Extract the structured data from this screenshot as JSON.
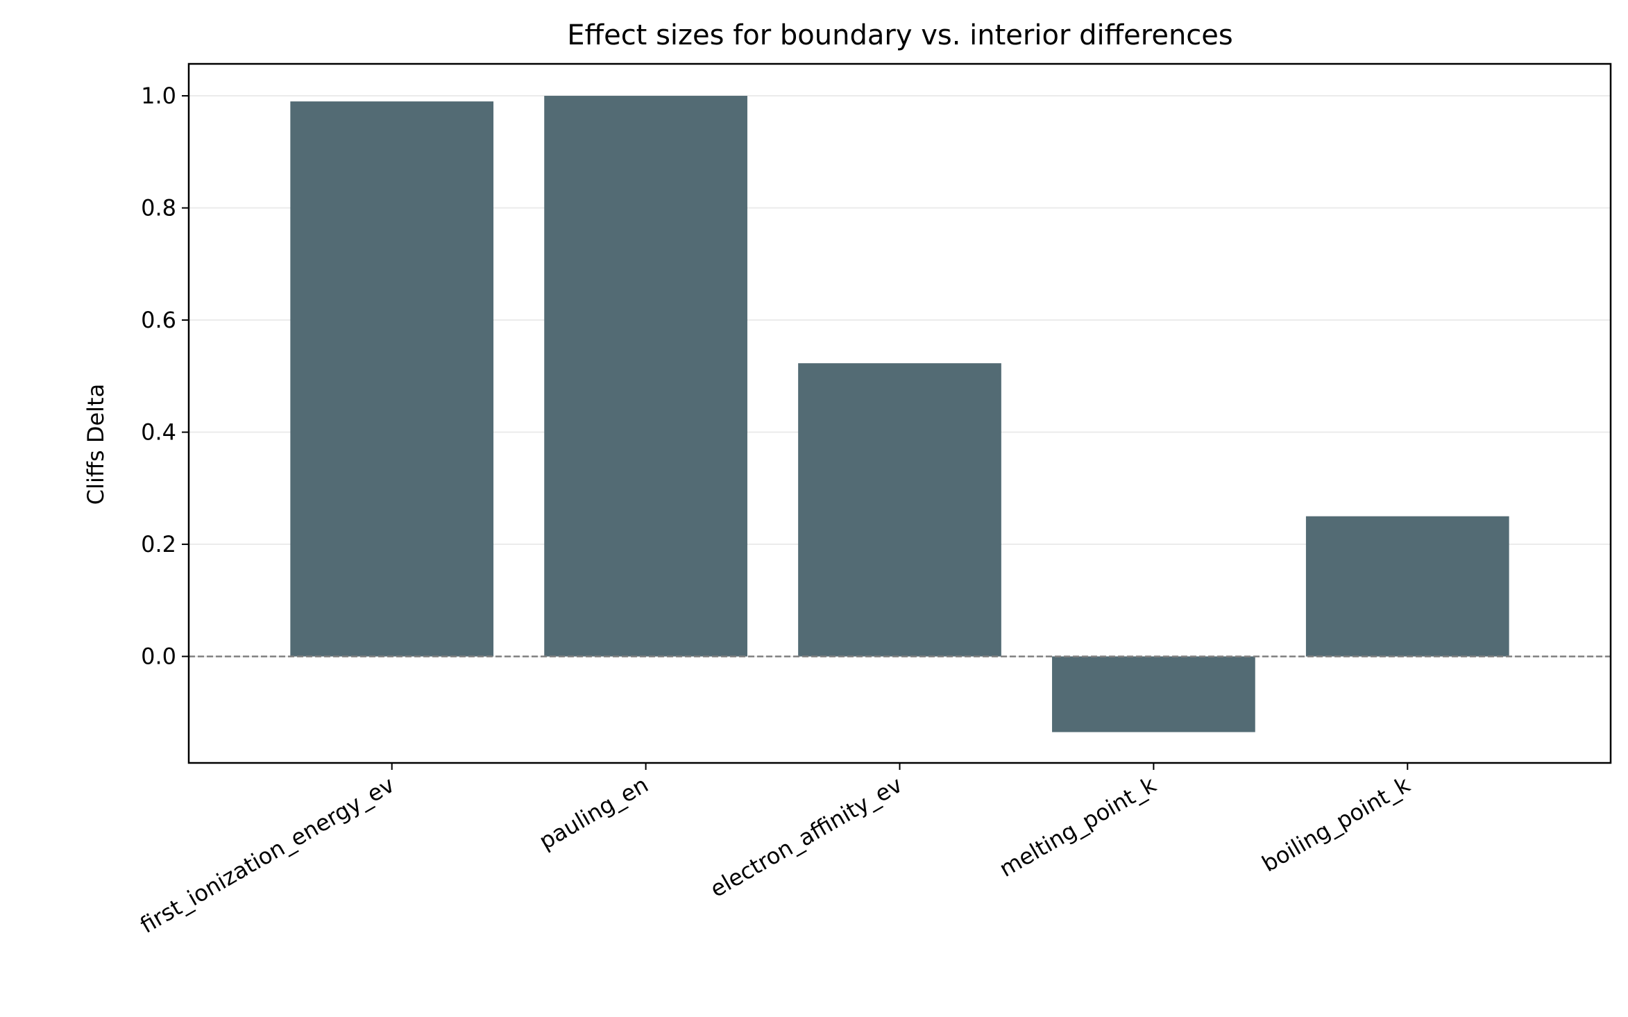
{
  "chart_data": {
    "type": "bar",
    "title": "Effect sizes for boundary vs. interior differences",
    "xlabel": "",
    "ylabel": "Cliffs Delta",
    "categories": [
      "first_ionization_energy_ev",
      "pauling_en",
      "electron_affinity_ev",
      "melting_point_k",
      "boiling_point_k"
    ],
    "values": [
      0.99,
      1.0,
      0.523,
      -0.135,
      0.25
    ],
    "ylim": [
      -0.19,
      1.057
    ],
    "yticks": [
      0.0,
      0.2,
      0.4,
      0.6,
      0.8,
      1.0
    ],
    "ytick_labels": [
      "0.0",
      "0.2",
      "0.4",
      "0.6",
      "0.8",
      "1.0"
    ],
    "grid": "horizontal",
    "reference_line": 0.0,
    "bar_color": "#536b74",
    "grid_color": "#ebebeb",
    "reference_line_color": "#808080"
  }
}
